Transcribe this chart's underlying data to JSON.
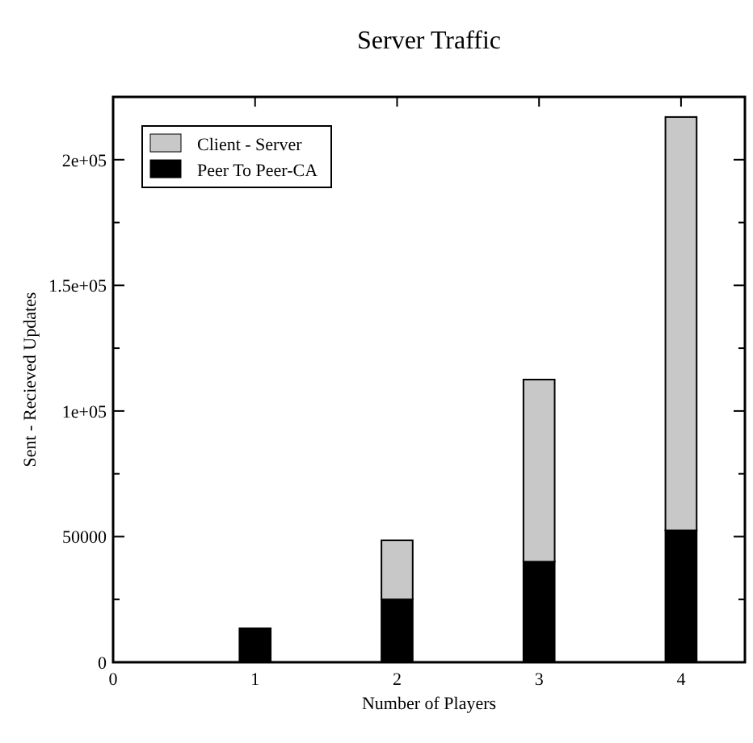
{
  "chart_data": {
    "type": "bar",
    "title": "Server Traffic",
    "xlabel": "Number of Players",
    "ylabel": "Sent - Recieved Updates",
    "x": [
      1,
      2,
      3,
      4
    ],
    "stacked": true,
    "series": [
      {
        "name": "Peer To Peer-CA",
        "color": "#000000",
        "values": [
          13500,
          25000,
          40000,
          52500
        ]
      },
      {
        "name": "Client - Server",
        "color": "#c8c8c8",
        "values": [
          0,
          23500,
          72500,
          164500
        ]
      }
    ],
    "xlim": [
      0,
      4.45
    ],
    "xticks": [
      0,
      1,
      2,
      3,
      4
    ],
    "ylim": [
      0,
      225000
    ],
    "yticks": [
      0,
      {
        "value": 25000,
        "label": null
      },
      50000,
      {
        "value": 75000,
        "label": null
      },
      {
        "value": 100000,
        "label": "1e+05"
      },
      {
        "value": 125000,
        "label": null
      },
      {
        "value": 150000,
        "label": "1.5e+05"
      },
      {
        "value": 175000,
        "label": null
      },
      {
        "value": 200000,
        "label": "2e+05"
      }
    ],
    "legend": "top left",
    "grid": false
  }
}
